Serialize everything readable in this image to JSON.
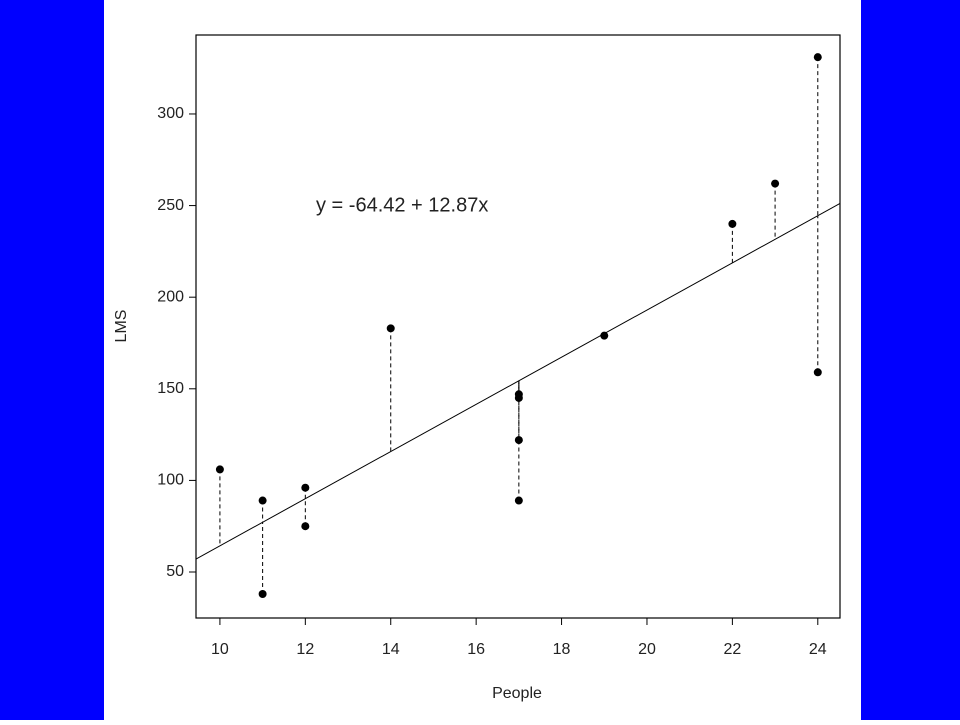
{
  "chart_data": {
    "type": "scatter",
    "x_label": "People",
    "y_label": "LMS",
    "annotation": "y = -64.42 + 12.87x",
    "fit": {
      "intercept": -64.42,
      "slope": 12.87
    },
    "x": [
      10,
      11,
      11,
      12,
      12,
      14,
      17,
      17,
      17,
      17,
      19,
      22,
      23,
      24,
      24
    ],
    "series": [
      {
        "color": "#000000",
        "values": [
          106,
          89,
          38,
          96,
          75,
          183,
          147,
          145,
          122,
          89,
          179,
          240,
          262,
          331,
          159
        ]
      }
    ],
    "xlim": [
      9.44,
      24.52
    ],
    "ylim": [
      24.9,
      343.1
    ],
    "xticks": [
      10,
      12,
      14,
      16,
      18,
      20,
      22,
      24
    ],
    "yticks": [
      50,
      100,
      150,
      200,
      250,
      300
    ]
  }
}
